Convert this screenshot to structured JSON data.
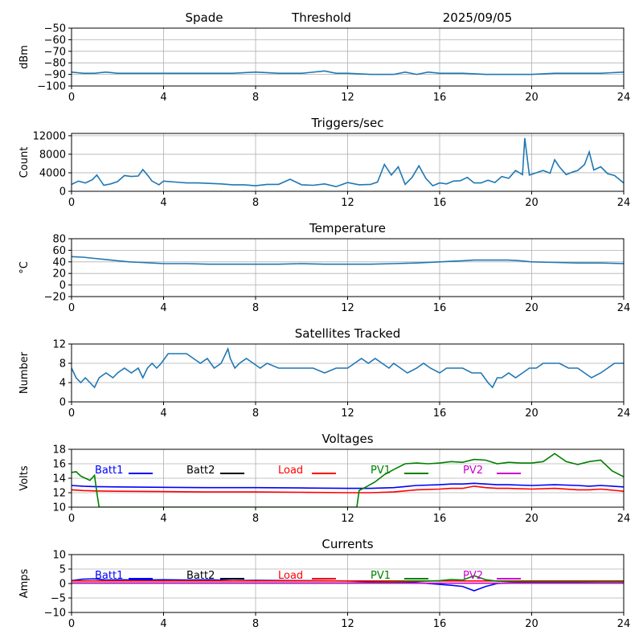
{
  "header": {
    "station": "Spade",
    "mode": "Threshold",
    "date": "2025/09/05"
  },
  "colors": {
    "series_default": "#1f77b4",
    "grid": "#b0b0b0",
    "batt1": "#0000ff",
    "batt2": "#000000",
    "load": "#ff0000",
    "pv1": "#008000",
    "pv2": "#cc00cc"
  },
  "chart_data": [
    {
      "id": "rssi",
      "type": "line",
      "title": "",
      "xlabel": "",
      "ylabel": "dBm",
      "xlim": [
        0,
        24
      ],
      "ylim": [
        -100,
        -50
      ],
      "xticks": [
        "0",
        "4",
        "8",
        "12",
        "16",
        "20",
        "24"
      ],
      "yticks": [
        "−100",
        "−90",
        "−80",
        "−70",
        "−60",
        "−50"
      ],
      "ytick_values": [
        -100,
        -90,
        -80,
        -70,
        -60,
        -50
      ],
      "grid": true,
      "series": [
        {
          "color_key": "series_default",
          "x": [
            0,
            0.5,
            1,
            1.5,
            2,
            3,
            4,
            5,
            6,
            7,
            8,
            9,
            10,
            11,
            11.5,
            12,
            13,
            14,
            14.5,
            15,
            15.5,
            16,
            17,
            18,
            19,
            20,
            21,
            22,
            23,
            24
          ],
          "y": [
            -88,
            -89,
            -89,
            -88,
            -89,
            -89,
            -89,
            -89,
            -89,
            -89,
            -88,
            -89,
            -89,
            -87,
            -89,
            -89,
            -90,
            -90,
            -88,
            -90,
            -88,
            -89,
            -89,
            -90,
            -90,
            -90,
            -89,
            -89,
            -89,
            -88
          ]
        }
      ]
    },
    {
      "id": "triggers",
      "type": "line",
      "title": "Triggers/sec",
      "xlabel": "",
      "ylabel": "Count",
      "xlim": [
        0,
        24
      ],
      "ylim": [
        0,
        12500
      ],
      "xticks": [
        "0",
        "4",
        "8",
        "12",
        "16",
        "20",
        "24"
      ],
      "yticks": [
        "0",
        "4000",
        "8000",
        "12000"
      ],
      "ytick_values": [
        0,
        4000,
        8000,
        12000
      ],
      "grid": true,
      "series": [
        {
          "color_key": "series_default",
          "x": [
            0,
            0.3,
            0.6,
            0.9,
            1.1,
            1.4,
            1.7,
            2,
            2.3,
            2.6,
            2.9,
            3.1,
            3.3,
            3.5,
            3.8,
            4,
            4.5,
            5,
            5.5,
            6,
            6.5,
            7,
            7.5,
            8,
            8.5,
            9,
            9.5,
            10,
            10.5,
            11,
            11.5,
            12,
            12.5,
            13,
            13.3,
            13.6,
            13.9,
            14.2,
            14.5,
            14.8,
            15.1,
            15.4,
            15.7,
            16,
            16.3,
            16.6,
            16.9,
            17.2,
            17.5,
            17.8,
            18.1,
            18.4,
            18.7,
            19,
            19.3,
            19.6,
            19.7,
            19.9,
            20.2,
            20.5,
            20.8,
            21,
            21.2,
            21.5,
            21.8,
            22,
            22.3,
            22.5,
            22.7,
            23,
            23.3,
            23.6,
            24
          ],
          "y": [
            1500,
            2200,
            1800,
            2500,
            3500,
            1300,
            1600,
            2100,
            3400,
            3200,
            3300,
            4700,
            3500,
            2200,
            1400,
            2200,
            2000,
            1800,
            1800,
            1700,
            1600,
            1400,
            1400,
            1200,
            1500,
            1500,
            2600,
            1400,
            1300,
            1600,
            1000,
            1900,
            1400,
            1500,
            2000,
            5800,
            3500,
            5300,
            1500,
            3000,
            5500,
            2800,
            1200,
            1800,
            1600,
            2200,
            2300,
            3000,
            1800,
            1800,
            2400,
            1900,
            3200,
            2800,
            4500,
            3600,
            11500,
            3500,
            4000,
            4500,
            3900,
            6800,
            5300,
            3600,
            4200,
            4500,
            5800,
            8500,
            4600,
            5300,
            3800,
            3400,
            1800
          ]
        }
      ]
    },
    {
      "id": "temperature",
      "type": "line",
      "title": "Temperature",
      "xlabel": "",
      "ylabel": "°C",
      "xlim": [
        0,
        24
      ],
      "ylim": [
        -20,
        80
      ],
      "xticks": [
        "0",
        "4",
        "8",
        "12",
        "16",
        "20",
        "24"
      ],
      "yticks": [
        "−20",
        "0",
        "20",
        "40",
        "60",
        "80"
      ],
      "ytick_values": [
        -20,
        0,
        20,
        40,
        60,
        80
      ],
      "grid": true,
      "series": [
        {
          "color_key": "series_default",
          "x": [
            0,
            0.5,
            1,
            1.5,
            2,
            2.5,
            3,
            3.5,
            4,
            5,
            6,
            7,
            8,
            9,
            10,
            11,
            12,
            13,
            14,
            15,
            16,
            16.5,
            17,
            17.5,
            18,
            18.5,
            19,
            19.5,
            20,
            21,
            22,
            23,
            24
          ],
          "y": [
            49,
            48,
            46,
            44,
            42,
            40,
            39,
            38,
            37,
            37,
            36,
            36,
            36,
            36,
            37,
            36,
            36,
            36,
            37,
            38,
            40,
            41,
            42,
            43,
            43,
            43,
            43,
            42,
            40,
            39,
            38,
            38,
            37
          ]
        }
      ]
    },
    {
      "id": "satellites",
      "type": "line",
      "title": "Satellites Tracked",
      "xlabel": "",
      "ylabel": "Number",
      "xlim": [
        0,
        24
      ],
      "ylim": [
        0,
        12
      ],
      "xticks": [
        "0",
        "4",
        "8",
        "12",
        "16",
        "20",
        "24"
      ],
      "yticks": [
        "0",
        "4",
        "8",
        "12"
      ],
      "ytick_values": [
        0,
        4,
        8,
        12
      ],
      "grid": true,
      "series": [
        {
          "color_key": "series_default",
          "x": [
            0,
            0.2,
            0.4,
            0.6,
            0.8,
            1,
            1.2,
            1.5,
            1.8,
            2,
            2.3,
            2.6,
            2.9,
            3.1,
            3.3,
            3.5,
            3.7,
            3.9,
            4.2,
            4.6,
            5,
            5.3,
            5.6,
            5.9,
            6.2,
            6.5,
            6.7,
            6.8,
            6.9,
            7.1,
            7.3,
            7.6,
            7.9,
            8.2,
            8.5,
            9,
            9.5,
            10,
            10.5,
            11,
            11.5,
            12,
            12.3,
            12.6,
            12.9,
            13.2,
            13.5,
            13.8,
            14,
            14.3,
            14.6,
            15,
            15.3,
            15.6,
            16,
            16.3,
            16.6,
            17,
            17.4,
            17.8,
            18.1,
            18.3,
            18.5,
            18.7,
            19,
            19.3,
            19.6,
            19.9,
            20.2,
            20.5,
            20.8,
            21.2,
            21.6,
            22,
            22.3,
            22.6,
            23,
            23.3,
            23.6,
            24
          ],
          "y": [
            7,
            5,
            4,
            5,
            4,
            3,
            5,
            6,
            5,
            6,
            7,
            6,
            7,
            5,
            7,
            8,
            7,
            8,
            10,
            10,
            10,
            9,
            8,
            9,
            7,
            8,
            10,
            11,
            9,
            7,
            8,
            9,
            8,
            7,
            8,
            7,
            7,
            7,
            7,
            6,
            7,
            7,
            8,
            9,
            8,
            9,
            8,
            7,
            8,
            7,
            6,
            7,
            8,
            7,
            6,
            7,
            7,
            7,
            6,
            6,
            4,
            3,
            5,
            5,
            6,
            5,
            6,
            7,
            7,
            8,
            8,
            8,
            7,
            7,
            6,
            5,
            6,
            7,
            8,
            8
          ]
        }
      ]
    },
    {
      "id": "voltages",
      "type": "line",
      "title": "Voltages",
      "xlabel": "",
      "ylabel": "Volts",
      "xlim": [
        0,
        24
      ],
      "ylim": [
        10,
        18
      ],
      "xticks": [
        "0",
        "4",
        "8",
        "12",
        "16",
        "20",
        "24"
      ],
      "yticks": [
        "10",
        "12",
        "14",
        "16",
        "18"
      ],
      "ytick_values": [
        10,
        12,
        14,
        16,
        18
      ],
      "grid": true,
      "legend": [
        "Batt1",
        "Batt2",
        "Load",
        "PV1",
        "PV2"
      ],
      "series": [
        {
          "name": "Batt1",
          "color_key": "batt1",
          "x": [
            0,
            0.5,
            1,
            2,
            4,
            6,
            8,
            10,
            12,
            13,
            14,
            15,
            16,
            16.5,
            17,
            17.5,
            18,
            18.5,
            19,
            20,
            21,
            22,
            22.5,
            23,
            24
          ],
          "y": [
            13,
            12.9,
            12.85,
            12.8,
            12.75,
            12.7,
            12.7,
            12.65,
            12.6,
            12.6,
            12.7,
            13,
            13.1,
            13.2,
            13.2,
            13.3,
            13.2,
            13.1,
            13.1,
            13,
            13.1,
            13,
            12.9,
            13,
            12.8
          ]
        },
        {
          "name": "Load",
          "color_key": "load",
          "x": [
            0,
            0.5,
            1,
            2,
            4,
            6,
            8,
            10,
            12,
            13,
            14,
            15,
            16,
            16.5,
            17,
            17.5,
            18,
            18.5,
            19,
            20,
            21,
            22,
            22.5,
            23,
            24
          ],
          "y": [
            12.4,
            12.3,
            12.25,
            12.2,
            12.15,
            12.1,
            12.1,
            12.05,
            12,
            12,
            12.1,
            12.4,
            12.5,
            12.6,
            12.6,
            12.9,
            12.7,
            12.6,
            12.6,
            12.5,
            12.6,
            12.4,
            12.4,
            12.5,
            12.2
          ]
        },
        {
          "name": "PV1",
          "color_key": "pv1",
          "x": [
            0,
            0.2,
            0.4,
            0.6,
            0.8,
            1,
            1.1,
            1.2,
            12.4,
            12.5,
            12.8,
            13.2,
            13.6,
            14,
            14.5,
            15,
            15.5,
            16,
            16.5,
            17,
            17.5,
            18,
            18.5,
            19,
            19.5,
            20,
            20.5,
            21,
            21.5,
            22,
            22.5,
            23,
            23.5,
            24
          ],
          "y": [
            14.8,
            14.9,
            14.3,
            14,
            13.7,
            14.4,
            12,
            10,
            10,
            12.3,
            12.8,
            13.5,
            14.5,
            15.2,
            16,
            16.1,
            16,
            16.1,
            16.3,
            16.2,
            16.6,
            16.5,
            16,
            16.2,
            16.1,
            16.1,
            16.3,
            17.4,
            16.3,
            15.9,
            16.3,
            16.5,
            15,
            14.2
          ]
        }
      ]
    },
    {
      "id": "currents",
      "type": "line",
      "title": "Currents",
      "xlabel": "",
      "ylabel": "Amps",
      "xlim": [
        0,
        24
      ],
      "ylim": [
        -10,
        10
      ],
      "xticks": [
        "0",
        "4",
        "8",
        "12",
        "16",
        "20",
        "24"
      ],
      "yticks": [
        "−10",
        "−5",
        "0",
        "5",
        "10"
      ],
      "ytick_values": [
        -10,
        -5,
        0,
        5,
        10
      ],
      "grid": true,
      "legend": [
        "Batt1",
        "Batt2",
        "Load",
        "PV1",
        "PV2"
      ],
      "series": [
        {
          "name": "Batt1",
          "color_key": "batt1",
          "x": [
            0,
            0.5,
            1,
            1.5,
            2,
            3,
            4,
            5,
            6,
            7,
            8,
            10,
            12,
            14,
            15,
            15.5,
            16,
            16.5,
            17,
            17.5,
            18,
            18.5,
            19,
            20,
            21,
            22,
            23,
            24
          ],
          "y": [
            1,
            1.5,
            1.6,
            1.2,
            1.3,
            1.2,
            1.3,
            1.2,
            1.3,
            1.0,
            1.1,
            1.0,
            0.9,
            0.5,
            0.3,
            0,
            -0.3,
            -0.6,
            -1,
            -2.5,
            -1,
            0,
            0.2,
            0.4,
            0.5,
            0.5,
            0.6,
            0.6
          ]
        },
        {
          "name": "Load",
          "color_key": "load",
          "x": [
            0,
            4,
            8,
            12,
            16,
            20,
            24
          ],
          "y": [
            0.9,
            0.9,
            0.9,
            0.9,
            0.9,
            0.9,
            0.9
          ]
        },
        {
          "name": "PV1",
          "color_key": "pv1",
          "x": [
            0,
            12,
            14,
            16,
            16.5,
            17,
            17.5,
            18,
            18.5,
            19,
            20,
            22,
            24
          ],
          "y": [
            0.2,
            0.2,
            0.5,
            1.0,
            1.4,
            1.2,
            2.7,
            1.3,
            0.8,
            0.7,
            0.6,
            0.6,
            0.6
          ]
        },
        {
          "name": "PV2",
          "color_key": "pv2",
          "x": [
            0,
            4,
            8,
            12,
            16,
            20,
            24
          ],
          "y": [
            0.1,
            0.1,
            0.1,
            0.1,
            0.1,
            0.1,
            0.1
          ]
        }
      ]
    }
  ]
}
